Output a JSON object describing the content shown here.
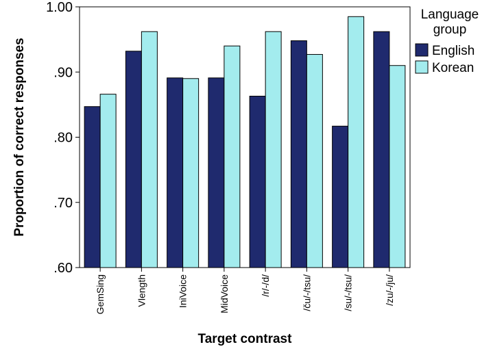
{
  "chart_data": {
    "type": "bar",
    "xlabel": "Target contrast",
    "ylabel": "Proportion of correct responses",
    "ylim": [
      0.6,
      1.0
    ],
    "yticks": [
      ".60",
      ".70",
      ".80",
      ".90",
      "1.00"
    ],
    "categories": [
      "GemSing",
      "Vlength",
      "IniVoice",
      "MidVoice",
      "/r/-/d/",
      "/ču/-/tsu/",
      "/su/-/tsu/",
      "/zu/-/ju/"
    ],
    "legend_title": "Language group",
    "legend_position": "right",
    "series": [
      {
        "name": "English",
        "color": "#1f2a6e",
        "values": [
          0.847,
          0.932,
          0.891,
          0.891,
          0.863,
          0.948,
          0.817,
          0.962
        ]
      },
      {
        "name": "Korean",
        "color": "#a3ecee",
        "values": [
          0.866,
          0.962,
          0.89,
          0.94,
          0.962,
          0.927,
          0.985,
          0.91
        ]
      }
    ],
    "grid": false
  }
}
